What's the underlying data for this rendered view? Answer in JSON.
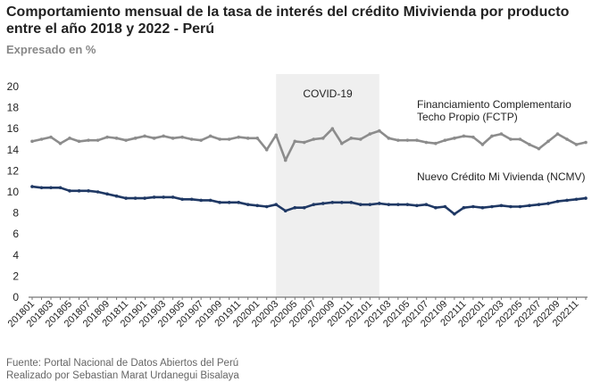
{
  "title": "Comportamiento mensual de la tasa de interés del crédito Mivivienda por producto entre el año 2018 y 2022 - Perú",
  "subtitle": "Expresado en %",
  "footer": {
    "source": "Fuente: Portal Nacional de Datos Abiertos del Perú",
    "author": "Realizado por Sebastian Marat Urdanegui Bisalaya"
  },
  "chart_data": {
    "type": "line",
    "ylim": [
      0,
      20
    ],
    "yticks": [
      0,
      2,
      4,
      6,
      8,
      10,
      12,
      14,
      16,
      18,
      20
    ],
    "grid": false,
    "x": [
      "201801",
      "201802",
      "201803",
      "201804",
      "201805",
      "201806",
      "201807",
      "201808",
      "201809",
      "201810",
      "201811",
      "201812",
      "201901",
      "201902",
      "201903",
      "201904",
      "201905",
      "201906",
      "201907",
      "201908",
      "201909",
      "201910",
      "201911",
      "201912",
      "202001",
      "202002",
      "202003",
      "202004",
      "202005",
      "202006",
      "202007",
      "202008",
      "202009",
      "202010",
      "202011",
      "202012",
      "202101",
      "202102",
      "202103",
      "202104",
      "202105",
      "202106",
      "202107",
      "202108",
      "202109",
      "202110",
      "202111",
      "202112",
      "202201",
      "202202",
      "202203",
      "202204",
      "202205",
      "202206",
      "202207",
      "202208",
      "202209",
      "202210",
      "202211",
      "202212"
    ],
    "xticks_shown": [
      "201801",
      "201803",
      "201805",
      "201807",
      "201809",
      "201811",
      "201901",
      "201903",
      "201905",
      "201907",
      "201909",
      "201911",
      "202001",
      "202003",
      "202005",
      "202007",
      "202009",
      "202011",
      "202101",
      "202103",
      "202105",
      "202107",
      "202109",
      "202111",
      "202201",
      "202203",
      "202205",
      "202207",
      "202209",
      "202211"
    ],
    "shaded_region": {
      "label": "COVID-19",
      "from": "202003",
      "to": "202102"
    },
    "series": [
      {
        "name": "Financiamiento Complementario Techo Propio (FCTP)",
        "label_lines": [
          "Financiamiento Complementario",
          "Techo Propio (FCTP)"
        ],
        "color": "#8c8c8c",
        "values": [
          14.8,
          15.0,
          15.2,
          14.6,
          15.1,
          14.8,
          14.9,
          14.9,
          15.2,
          15.1,
          14.9,
          15.1,
          15.3,
          15.1,
          15.3,
          15.1,
          15.2,
          15.0,
          14.9,
          15.3,
          15.0,
          15.0,
          15.2,
          15.1,
          15.1,
          14.0,
          15.4,
          13.0,
          14.8,
          14.7,
          15.0,
          15.1,
          16.0,
          14.6,
          15.1,
          15.0,
          15.5,
          15.8,
          15.1,
          14.9,
          14.9,
          14.9,
          14.7,
          14.6,
          14.9,
          15.1,
          15.3,
          15.2,
          14.5,
          15.3,
          15.5,
          15.0,
          15.0,
          14.5,
          14.1,
          14.8,
          15.5,
          15.0,
          14.5,
          14.7
        ]
      },
      {
        "name": "Nuevo Crédito Mi Vivienda (NCMV)",
        "label_lines": [
          "Nuevo Crédito Mi Vivienda (NCMV)"
        ],
        "color": "#1f3864",
        "values": [
          10.5,
          10.4,
          10.4,
          10.4,
          10.1,
          10.1,
          10.1,
          10.0,
          9.8,
          9.6,
          9.4,
          9.4,
          9.4,
          9.5,
          9.5,
          9.5,
          9.3,
          9.3,
          9.2,
          9.2,
          9.0,
          9.0,
          9.0,
          8.8,
          8.7,
          8.6,
          8.8,
          8.2,
          8.5,
          8.5,
          8.8,
          8.9,
          9.0,
          9.0,
          9.0,
          8.8,
          8.8,
          8.9,
          8.8,
          8.8,
          8.8,
          8.7,
          8.8,
          8.5,
          8.6,
          7.9,
          8.5,
          8.6,
          8.5,
          8.6,
          8.7,
          8.6,
          8.6,
          8.7,
          8.8,
          8.9,
          9.1,
          9.2,
          9.3,
          9.4
        ]
      }
    ]
  }
}
